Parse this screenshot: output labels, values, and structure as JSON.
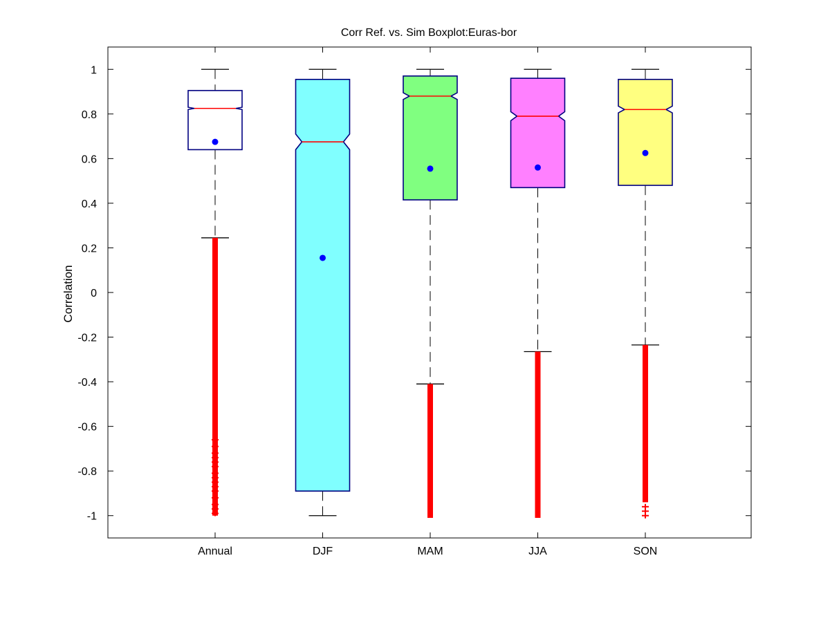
{
  "chart_data": {
    "type": "boxplot",
    "title": "Corr Ref. vs. Sim Boxplot:Euras-bor",
    "xlabel": "",
    "ylabel": "Correlation",
    "ylim": [
      -1.1,
      1.1
    ],
    "yticks": [
      "1",
      "0.8",
      "0.6",
      "0.4",
      "0.2",
      "0",
      "-0.2",
      "-0.4",
      "-0.6",
      "-0.8",
      "-1"
    ],
    "ytick_values": [
      1,
      0.8,
      0.6,
      0.4,
      0.2,
      0,
      -0.2,
      -0.4,
      -0.6,
      -0.8,
      -1
    ],
    "notched": true,
    "grid": false,
    "categories": [
      "Annual",
      "DJF",
      "MAM",
      "JJA",
      "SON"
    ],
    "boxes": [
      {
        "category": "Annual",
        "whisker_low": 0.245,
        "q1": 0.64,
        "median": 0.825,
        "q3": 0.905,
        "whisker_high": 1.0,
        "notch_low": 0.82,
        "notch_high": 0.83,
        "mean": 0.675,
        "fill": "#ffffff",
        "outliers_low": [
          -1.0,
          0.245
        ],
        "sparse_outliers": [
          -0.66,
          -0.69,
          -0.72,
          -0.74,
          -0.76,
          -0.78,
          -0.81,
          -0.83,
          -0.85,
          -0.87,
          -0.89,
          -0.92,
          -0.95,
          -0.97,
          -0.99
        ]
      },
      {
        "category": "DJF",
        "whisker_low": -1.0,
        "q1": -0.89,
        "median": 0.675,
        "q3": 0.955,
        "whisker_high": 1.0,
        "notch_low": 0.64,
        "notch_high": 0.71,
        "mean": 0.155,
        "fill": "#80ffff",
        "outliers_low": null,
        "sparse_outliers": []
      },
      {
        "category": "MAM",
        "whisker_low": -0.41,
        "q1": 0.415,
        "median": 0.88,
        "q3": 0.97,
        "whisker_high": 1.0,
        "notch_low": 0.865,
        "notch_high": 0.895,
        "mean": 0.555,
        "fill": "#80ff80",
        "outliers_low": [
          -1.01,
          -0.41
        ],
        "sparse_outliers": []
      },
      {
        "category": "JJA",
        "whisker_low": -0.265,
        "q1": 0.47,
        "median": 0.79,
        "q3": 0.96,
        "whisker_high": 1.0,
        "notch_low": 0.77,
        "notch_high": 0.81,
        "mean": 0.56,
        "fill": "#ff80ff",
        "outliers_low": [
          -1.01,
          -0.265
        ],
        "sparse_outliers": []
      },
      {
        "category": "SON",
        "whisker_low": -0.235,
        "q1": 0.48,
        "median": 0.82,
        "q3": 0.955,
        "whisker_high": 1.0,
        "notch_low": 0.805,
        "notch_high": 0.835,
        "mean": 0.625,
        "fill": "#ffff80",
        "outliers_low": [
          -0.94,
          -0.235
        ],
        "sparse_outliers": [
          -0.96,
          -0.98,
          -1.0
        ]
      }
    ]
  },
  "colors": {
    "box_edge": "#000080",
    "median": "#ff0000",
    "mean": "#0000ff",
    "outlier": "#ff0000",
    "whisker": "#000000",
    "axes": "#000000"
  }
}
